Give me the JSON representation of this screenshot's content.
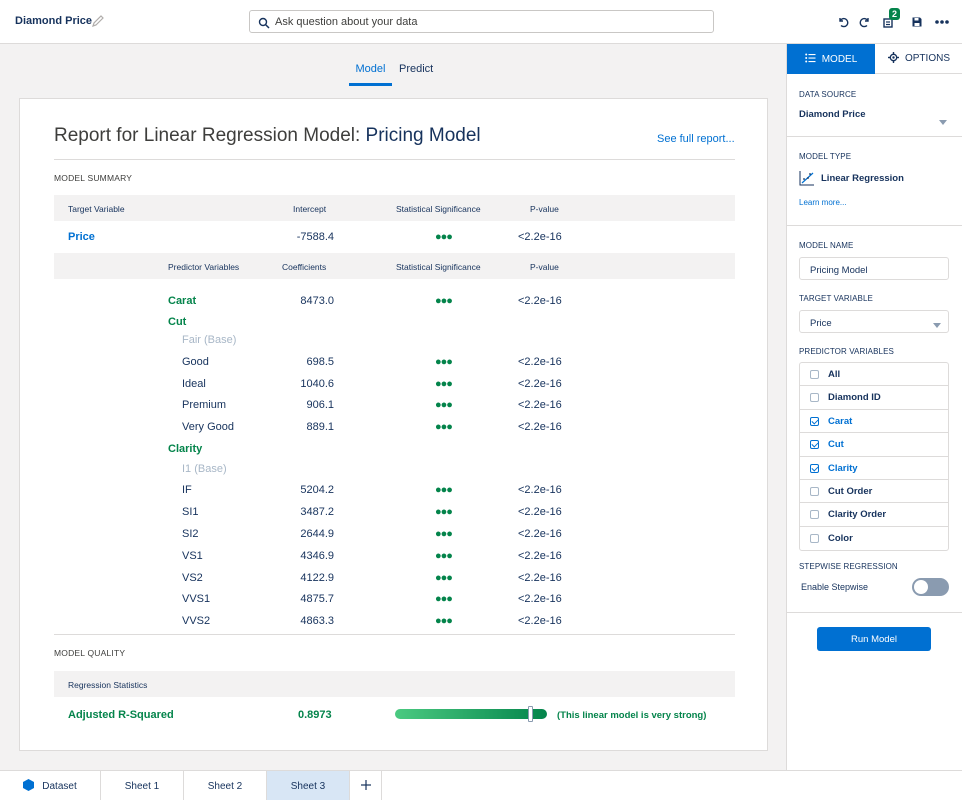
{
  "header": {
    "title": "Diamond Price",
    "search_placeholder": "Ask question about your data",
    "badge_count": "2"
  },
  "main_tabs": [
    "Model",
    "Predict"
  ],
  "report": {
    "title_prefix": "Report for Linear Regression Model:",
    "title_name": "Pricing Model",
    "full_report_link": "See full report...",
    "summary_label": "MODEL SUMMARY",
    "target_headers": [
      "Target Variable",
      "Intercept",
      "Statistical Significance",
      "P-value"
    ],
    "target_row": {
      "name": "Price",
      "intercept": "-7588.4",
      "pvalue": "<2.2e-16"
    },
    "predictor_headers": [
      "Predictor Variables",
      "Coefficients",
      "Statistical Significance",
      "P-value"
    ],
    "rows": [
      {
        "label": "Carat",
        "kind": "var",
        "coef": "8473.0",
        "pvalue": "<2.2e-16"
      },
      {
        "label": "Cut",
        "kind": "group"
      },
      {
        "label": "Fair (Base)",
        "kind": "base"
      },
      {
        "label": "Good",
        "kind": "level",
        "coef": "698.5",
        "pvalue": "<2.2e-16"
      },
      {
        "label": "Ideal",
        "kind": "level",
        "coef": "1040.6",
        "pvalue": "<2.2e-16"
      },
      {
        "label": "Premium",
        "kind": "level",
        "coef": "906.1",
        "pvalue": "<2.2e-16"
      },
      {
        "label": "Very Good",
        "kind": "level",
        "coef": "889.1",
        "pvalue": "<2.2e-16"
      },
      {
        "label": "Clarity",
        "kind": "group"
      },
      {
        "label": "I1 (Base)",
        "kind": "base"
      },
      {
        "label": "IF",
        "kind": "level",
        "coef": "5204.2",
        "pvalue": "<2.2e-16"
      },
      {
        "label": "SI1",
        "kind": "level",
        "coef": "3487.2",
        "pvalue": "<2.2e-16"
      },
      {
        "label": "SI2",
        "kind": "level",
        "coef": "2644.9",
        "pvalue": "<2.2e-16"
      },
      {
        "label": "VS1",
        "kind": "level",
        "coef": "4346.9",
        "pvalue": "<2.2e-16"
      },
      {
        "label": "VS2",
        "kind": "level",
        "coef": "4122.9",
        "pvalue": "<2.2e-16"
      },
      {
        "label": "VVS1",
        "kind": "level",
        "coef": "4875.7",
        "pvalue": "<2.2e-16"
      },
      {
        "label": "VVS2",
        "kind": "level",
        "coef": "4863.3",
        "pvalue": "<2.2e-16"
      }
    ],
    "quality_label": "MODEL QUALITY",
    "regression_header": "Regression Statistics",
    "adjusted_r_squared_label": "Adjusted R-Squared",
    "adjusted_r_squared_value": "0.8973",
    "adjusted_r_squared_level": 0.8973,
    "quality_note": "(This linear model is very strong)",
    "colors": {
      "significance": "#04844b",
      "link": "#0070d2"
    }
  },
  "panel": {
    "tabs": [
      "MODEL",
      "OPTIONS"
    ],
    "data_source_label": "DATA SOURCE",
    "data_source_value": "Diamond Price",
    "model_type_label": "MODEL TYPE",
    "model_type_value": "Linear Regression",
    "learn_more": "Learn more...",
    "model_name_label": "MODEL NAME",
    "model_name_value": "Pricing Model",
    "target_variable_label": "TARGET VARIABLE",
    "target_variable_value": "Price",
    "predictor_variables_label": "PREDICTOR VARIABLES",
    "predictors": [
      {
        "label": "All",
        "checked": false
      },
      {
        "label": "Diamond ID",
        "checked": false
      },
      {
        "label": "Carat",
        "checked": true
      },
      {
        "label": "Cut",
        "checked": true
      },
      {
        "label": "Clarity",
        "checked": true
      },
      {
        "label": "Cut Order",
        "checked": false
      },
      {
        "label": "Clarity Order",
        "checked": false
      },
      {
        "label": "Color",
        "checked": false
      }
    ],
    "stepwise_label": "STEPWISE REGRESSION",
    "stepwise_toggle_label": "Enable Stepwise",
    "stepwise_enabled": false,
    "run_button": "Run Model"
  },
  "bottom_tabs": [
    "Dataset",
    "Sheet 1",
    "Sheet 2",
    "Sheet 3"
  ],
  "active_bottom_tab": "Sheet 3"
}
